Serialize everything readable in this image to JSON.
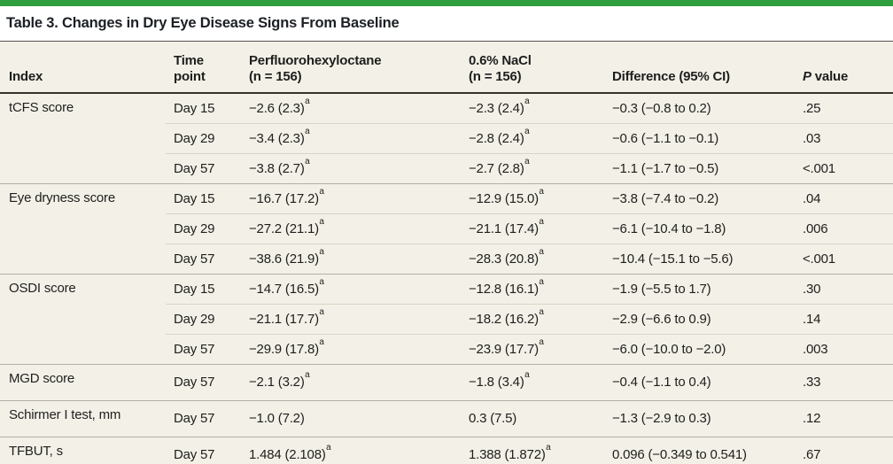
{
  "colors": {
    "accent_green": "#2f9e3f",
    "table_background": "#f3f1e7",
    "rule_dark": "#33322d",
    "rule_group": "#b2afa3",
    "rule_sub": "#d7d4c7"
  },
  "title": "Table 3. Changes in Dry Eye Disease Signs From Baseline",
  "table": {
    "columns": [
      {
        "id": "index",
        "lines": [
          "Index"
        ]
      },
      {
        "id": "time",
        "lines": [
          "Time",
          "point"
        ]
      },
      {
        "id": "drug",
        "lines": [
          "Perfluorohexyloctane",
          "(n = 156)"
        ]
      },
      {
        "id": "nacl",
        "lines": [
          "0.6% NaCl",
          "(n = 156)"
        ]
      },
      {
        "id": "diff",
        "lines": [
          "Difference (95% CI)"
        ]
      },
      {
        "id": "p",
        "italic_prefix": "P",
        "lines": [
          " value"
        ]
      }
    ],
    "footnote_marker": "a",
    "groups": [
      {
        "index": "tCFS score",
        "rows": [
          {
            "time": "Day 15",
            "drug": "−2.6 (2.3)",
            "drug_sup": "a",
            "nacl": "−2.3 (2.4)",
            "nacl_sup": "a",
            "diff": "−0.3 (−0.8 to 0.2)",
            "p": ".25"
          },
          {
            "time": "Day 29",
            "drug": "−3.4 (2.3)",
            "drug_sup": "a",
            "nacl": "−2.8 (2.4)",
            "nacl_sup": "a",
            "diff": "−0.6 (−1.1 to −0.1)",
            "p": ".03"
          },
          {
            "time": "Day 57",
            "drug": "−3.8 (2.7)",
            "drug_sup": "a",
            "nacl": "−2.7 (2.8)",
            "nacl_sup": "a",
            "diff": "−1.1 (−1.7 to −0.5)",
            "p": "<.001"
          }
        ]
      },
      {
        "index": "Eye dryness score",
        "rows": [
          {
            "time": "Day 15",
            "drug": "−16.7 (17.2)",
            "drug_sup": "a",
            "nacl": "−12.9 (15.0)",
            "nacl_sup": "a",
            "diff": "−3.8 (−7.4 to −0.2)",
            "p": ".04"
          },
          {
            "time": "Day 29",
            "drug": "−27.2 (21.1)",
            "drug_sup": "a",
            "nacl": "−21.1 (17.4)",
            "nacl_sup": "a",
            "diff": "−6.1 (−10.4 to −1.8)",
            "p": ".006"
          },
          {
            "time": "Day 57",
            "drug": "−38.6 (21.9)",
            "drug_sup": "a",
            "nacl": "−28.3 (20.8)",
            "nacl_sup": "a",
            "diff": "−10.4 (−15.1 to −5.6)",
            "p": "<.001"
          }
        ]
      },
      {
        "index": "OSDI score",
        "rows": [
          {
            "time": "Day 15",
            "drug": "−14.7 (16.5)",
            "drug_sup": "a",
            "nacl": "−12.8 (16.1)",
            "nacl_sup": "a",
            "diff": "−1.9 (−5.5 to 1.7)",
            "p": ".30"
          },
          {
            "time": "Day 29",
            "drug": "−21.1 (17.7)",
            "drug_sup": "a",
            "nacl": "−18.2 (16.2)",
            "nacl_sup": "a",
            "diff": "−2.9 (−6.6 to 0.9)",
            "p": ".14"
          },
          {
            "time": "Day 57",
            "drug": "−29.9 (17.8)",
            "drug_sup": "a",
            "nacl": "−23.9 (17.7)",
            "nacl_sup": "a",
            "diff": "−6.0 (−10.0 to −2.0)",
            "p": ".003"
          }
        ]
      },
      {
        "index": "MGD score",
        "rows": [
          {
            "time": "Day 57",
            "drug": "−2.1 (3.2)",
            "drug_sup": "a",
            "nacl": "−1.8 (3.4)",
            "nacl_sup": "a",
            "diff": "−0.4 (−1.1 to 0.4)",
            "p": ".33"
          }
        ]
      },
      {
        "index": "Schirmer I test, mm",
        "rows": [
          {
            "time": "Day 57",
            "drug": "−1.0 (7.2)",
            "nacl": "0.3 (7.5)",
            "diff": "−1.3 (−2.9 to 0.3)",
            "p": ".12"
          }
        ]
      },
      {
        "index": "TFBUT, s",
        "rows": [
          {
            "time": "Day 57",
            "drug": "1.484 (2.108)",
            "drug_sup": "a",
            "nacl": "1.388 (1.872)",
            "nacl_sup": "a",
            "diff": "0.096 (−0.349 to 0.541)",
            "p": ".67"
          }
        ]
      }
    ]
  }
}
